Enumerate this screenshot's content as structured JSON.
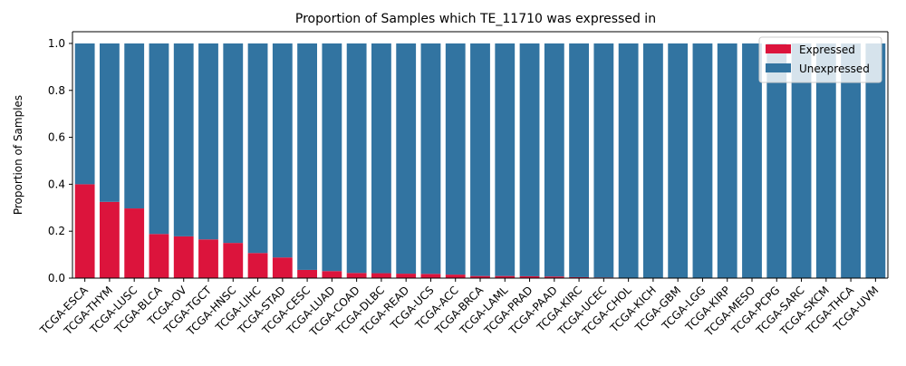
{
  "chart_data": {
    "type": "bar",
    "stacked": true,
    "title": "Proportion of Samples which TE_11710 was expressed in",
    "xlabel": "",
    "ylabel": "Proportion of Samples",
    "ylim": [
      0,
      1.05
    ],
    "yticks": [
      0.0,
      0.2,
      0.4,
      0.6,
      0.8,
      1.0
    ],
    "grid": false,
    "legend_position": "top-right",
    "categories": [
      "TCGA-ESCA",
      "TCGA-THYM",
      "TCGA-LUSC",
      "TCGA-BLCA",
      "TCGA-OV",
      "TCGA-TGCT",
      "TCGA-HNSC",
      "TCGA-LIHC",
      "TCGA-STAD",
      "TCGA-CESC",
      "TCGA-LUAD",
      "TCGA-COAD",
      "TCGA-DLBC",
      "TCGA-READ",
      "TCGA-UCS",
      "TCGA-ACC",
      "TCGA-BRCA",
      "TCGA-LAML",
      "TCGA-PRAD",
      "TCGA-PAAD",
      "TCGA-KIRC",
      "TCGA-UCEC",
      "TCGA-CHOL",
      "TCGA-KICH",
      "TCGA-GBM",
      "TCGA-LGG",
      "TCGA-KIRP",
      "TCGA-MESO",
      "TCGA-PCPG",
      "TCGA-SARC",
      "TCGA-SKCM",
      "TCGA-THCA",
      "TCGA-UVM"
    ],
    "series": [
      {
        "name": "Expressed",
        "color": "#dc143c",
        "values": [
          0.4,
          0.325,
          0.297,
          0.188,
          0.178,
          0.165,
          0.15,
          0.107,
          0.088,
          0.035,
          0.03,
          0.022,
          0.021,
          0.019,
          0.018,
          0.015,
          0.009,
          0.009,
          0.008,
          0.007,
          0.004,
          0.003,
          0,
          0,
          0,
          0,
          0,
          0,
          0,
          0,
          0,
          0,
          0
        ]
      },
      {
        "name": "Unexpressed",
        "color": "#3274a1",
        "values": [
          0.6,
          0.675,
          0.703,
          0.812,
          0.822,
          0.835,
          0.85,
          0.893,
          0.912,
          0.965,
          0.97,
          0.978,
          0.979,
          0.981,
          0.982,
          0.985,
          0.991,
          0.991,
          0.992,
          0.993,
          0.996,
          0.997,
          1,
          1,
          1,
          1,
          1,
          1,
          1,
          1,
          1,
          1,
          1
        ]
      }
    ]
  }
}
